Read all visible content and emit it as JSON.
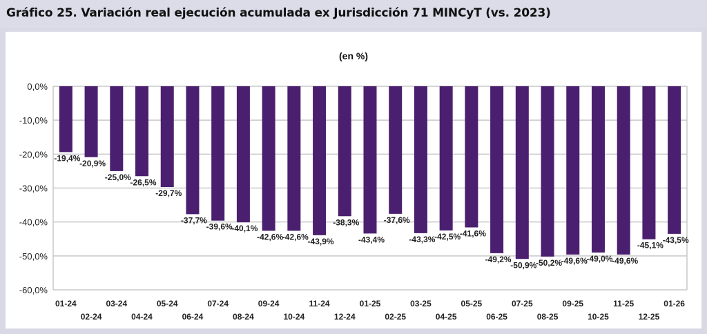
{
  "header": {
    "title": "Gráfico 25. Variación real ejecución acumulada ex Jurisdicción 71 MINCyT (vs. 2023)"
  },
  "chart_data": {
    "type": "bar",
    "title": "(en %)",
    "xlabel": "",
    "ylabel": "",
    "ylim": [
      -60,
      0
    ],
    "yticks": [
      0,
      -10,
      -20,
      -30,
      -40,
      -50,
      -60
    ],
    "ytick_labels": [
      "0,0%",
      "-10,0%",
      "-20,0%",
      "-30,0%",
      "-40,0%",
      "-50,0%",
      "-60,0%"
    ],
    "grid": true,
    "bar_color": "#4b1f6f",
    "categories": [
      "01-24",
      "02-24",
      "03-24",
      "04-24",
      "05-24",
      "06-24",
      "07-24",
      "08-24",
      "09-24",
      "10-24",
      "11-24",
      "12-24",
      "01-25",
      "02-25",
      "03-25",
      "04-25",
      "05-25",
      "06-25",
      "07-25",
      "08-25",
      "09-25",
      "10-25",
      "11-25",
      "12-25",
      "01-26"
    ],
    "values": [
      -19.4,
      -20.9,
      -25.0,
      -26.5,
      -29.7,
      -37.7,
      -39.6,
      -40.1,
      -42.6,
      -42.6,
      -43.9,
      -38.3,
      -43.4,
      -37.6,
      -43.3,
      -42.5,
      -41.6,
      -49.2,
      -50.9,
      -50.2,
      -49.6,
      -49.0,
      -49.6,
      -45.1,
      -43.5
    ],
    "data_labels": [
      "-19,4%",
      "-20,9%",
      "-25,0%",
      "-26,5%",
      "-29,7%",
      "-37,7%",
      "-39,6%",
      "-40,1%",
      "-42,6%",
      "-42,6%",
      "-43,9%",
      "-38,3%",
      "-43,4%",
      "-37,6%",
      "-43,3%",
      "-42,5%",
      "-41,6%",
      "-49,2%",
      "-50,9%",
      "-50,2%",
      "-49,6%",
      "-49,0%",
      "-49,6%",
      "-45,1%",
      "-43,5%"
    ]
  }
}
